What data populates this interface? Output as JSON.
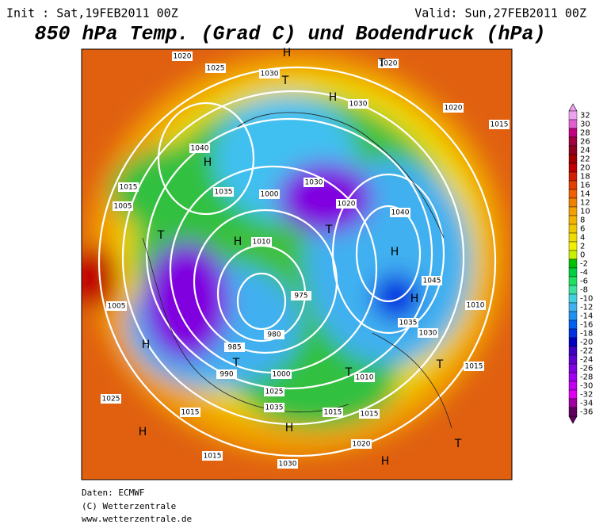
{
  "header": {
    "init": "Init : Sat,19FEB2011 00Z",
    "valid": "Valid: Sun,27FEB2011 00Z",
    "title": "850 hPa Temp. (Grad C) und Bodendruck (hPa)"
  },
  "footer": [
    "Daten: ECMWF",
    "(C) Wetterzentrale",
    "www.wetterzentrale.de"
  ],
  "colorbar": {
    "labels": [
      32,
      30,
      28,
      26,
      24,
      22,
      20,
      18,
      16,
      14,
      12,
      10,
      8,
      6,
      4,
      2,
      0,
      -2,
      -4,
      -6,
      -8,
      -10,
      -12,
      -14,
      -16,
      -18,
      -20,
      -22,
      -24,
      -26,
      -28,
      -30,
      -32,
      -34,
      -36
    ],
    "colors": [
      "#f0a0f0",
      "#e060d0",
      "#c00080",
      "#a00040",
      "#900020",
      "#a00000",
      "#c00000",
      "#d02000",
      "#e04000",
      "#f06000",
      "#f08000",
      "#f0a000",
      "#f0b400",
      "#f0c800",
      "#f0dc00",
      "#f0f000",
      "#c8f000",
      "#00c000",
      "#00d040",
      "#20e060",
      "#40e0a0",
      "#40d0e0",
      "#40b0f0",
      "#2090f0",
      "#0060f0",
      "#0030e0",
      "#0000c0",
      "#4000c0",
      "#6000d0",
      "#8000e0",
      "#a000f0",
      "#c000f0",
      "#e000f0",
      "#a000a0",
      "#600060"
    ]
  },
  "map_labels": [
    "1020",
    "1025",
    "1030",
    "1020",
    "1015",
    "1040",
    "1015",
    "1005",
    "1000",
    "1010",
    "1005",
    "1020",
    "1035",
    "1030",
    "1020",
    "1040",
    "1045",
    "1035",
    "1030",
    "1015",
    "1025",
    "1010",
    "1015",
    "1030",
    "1020",
    "1000",
    "990",
    "985",
    "980",
    "975",
    "1025",
    "1035",
    "1030",
    "1015",
    "1015",
    "1010",
    "1015"
  ],
  "map_symbols": [
    "H",
    "T",
    "H",
    "T",
    "H",
    "T",
    "H",
    "H",
    "T",
    "H",
    "T",
    "H",
    "T",
    "H",
    "T",
    "H",
    "T",
    "H"
  ]
}
